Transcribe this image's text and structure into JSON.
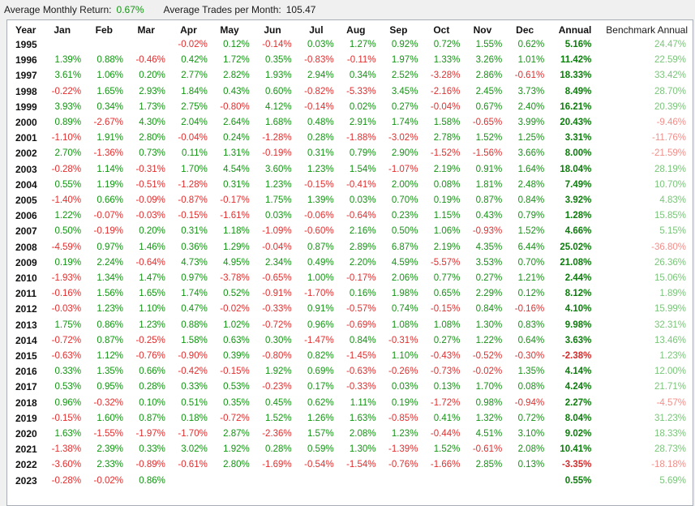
{
  "summary": {
    "avg_monthly_return_label": "Average Monthly Return:",
    "avg_monthly_return_value": "0.67%",
    "avg_trades_label": "Average Trades per Month:",
    "avg_trades_value": "105.47"
  },
  "colors": {
    "positive": "#159415",
    "negative": "#e03030",
    "annual_positive": "#0b7d0b",
    "annual_negative": "#d62b2b",
    "benchmark_positive": "#7cc47c",
    "benchmark_negative": "#f0908c"
  },
  "chart_data": {
    "type": "table",
    "title": "Monthly returns by year with annual and benchmark annual returns"
  },
  "table": {
    "headers": [
      "Year",
      "Jan",
      "Feb",
      "Mar",
      "Apr",
      "May",
      "Jun",
      "Jul",
      "Aug",
      "Sep",
      "Oct",
      "Nov",
      "Dec",
      "Annual",
      "Benchmark Annual"
    ],
    "rows": [
      {
        "year": "1995",
        "months": [
          "",
          "",
          "",
          "-0.02%",
          "0.12%",
          "-0.14%",
          "0.03%",
          "1.27%",
          "0.92%",
          "0.72%",
          "1.55%",
          "0.62%"
        ],
        "annual": "5.16%",
        "benchmark": "24.47%"
      },
      {
        "year": "1996",
        "months": [
          "1.39%",
          "0.88%",
          "-0.46%",
          "0.42%",
          "1.72%",
          "0.35%",
          "-0.83%",
          "-0.11%",
          "1.97%",
          "1.33%",
          "3.26%",
          "1.01%"
        ],
        "annual": "11.42%",
        "benchmark": "22.59%"
      },
      {
        "year": "1997",
        "months": [
          "3.61%",
          "1.06%",
          "0.20%",
          "2.77%",
          "2.82%",
          "1.93%",
          "2.94%",
          "0.34%",
          "2.52%",
          "-3.28%",
          "2.86%",
          "-0.61%"
        ],
        "annual": "18.33%",
        "benchmark": "33.42%"
      },
      {
        "year": "1998",
        "months": [
          "-0.22%",
          "1.65%",
          "2.93%",
          "1.84%",
          "0.43%",
          "0.60%",
          "-0.82%",
          "-5.33%",
          "3.45%",
          "-2.16%",
          "2.45%",
          "3.73%"
        ],
        "annual": "8.49%",
        "benchmark": "28.70%"
      },
      {
        "year": "1999",
        "months": [
          "3.93%",
          "0.34%",
          "1.73%",
          "2.75%",
          "-0.80%",
          "4.12%",
          "-0.14%",
          "0.02%",
          "0.27%",
          "-0.04%",
          "0.67%",
          "2.40%"
        ],
        "annual": "16.21%",
        "benchmark": "20.39%"
      },
      {
        "year": "2000",
        "months": [
          "0.89%",
          "-2.67%",
          "4.30%",
          "2.04%",
          "2.64%",
          "1.68%",
          "0.48%",
          "2.91%",
          "1.74%",
          "1.58%",
          "-0.65%",
          "3.99%"
        ],
        "annual": "20.43%",
        "benchmark": "-9.46%"
      },
      {
        "year": "2001",
        "months": [
          "-1.10%",
          "1.91%",
          "2.80%",
          "-0.04%",
          "0.24%",
          "-1.28%",
          "0.28%",
          "-1.88%",
          "-3.02%",
          "2.78%",
          "1.52%",
          "1.25%"
        ],
        "annual": "3.31%",
        "benchmark": "-11.76%"
      },
      {
        "year": "2002",
        "months": [
          "2.70%",
          "-1.36%",
          "0.73%",
          "0.11%",
          "1.31%",
          "-0.19%",
          "0.31%",
          "0.79%",
          "2.90%",
          "-1.52%",
          "-1.56%",
          "3.66%"
        ],
        "annual": "8.00%",
        "benchmark": "-21.59%"
      },
      {
        "year": "2003",
        "months": [
          "-0.28%",
          "1.14%",
          "-0.31%",
          "1.70%",
          "4.54%",
          "3.60%",
          "1.23%",
          "1.54%",
          "-1.07%",
          "2.19%",
          "0.91%",
          "1.64%"
        ],
        "annual": "18.04%",
        "benchmark": "28.19%"
      },
      {
        "year": "2004",
        "months": [
          "0.55%",
          "1.19%",
          "-0.51%",
          "-1.28%",
          "0.31%",
          "1.23%",
          "-0.15%",
          "-0.41%",
          "2.00%",
          "0.08%",
          "1.81%",
          "2.48%"
        ],
        "annual": "7.49%",
        "benchmark": "10.70%"
      },
      {
        "year": "2005",
        "months": [
          "-1.40%",
          "0.66%",
          "-0.09%",
          "-0.87%",
          "-0.17%",
          "1.75%",
          "1.39%",
          "0.03%",
          "0.70%",
          "0.19%",
          "0.87%",
          "0.84%"
        ],
        "annual": "3.92%",
        "benchmark": "4.83%"
      },
      {
        "year": "2006",
        "months": [
          "1.22%",
          "-0.07%",
          "-0.03%",
          "-0.15%",
          "-1.61%",
          "0.03%",
          "-0.06%",
          "-0.64%",
          "0.23%",
          "1.15%",
          "0.43%",
          "0.79%"
        ],
        "annual": "1.28%",
        "benchmark": "15.85%"
      },
      {
        "year": "2007",
        "months": [
          "0.50%",
          "-0.19%",
          "0.20%",
          "0.31%",
          "1.18%",
          "-1.09%",
          "-0.60%",
          "2.16%",
          "0.50%",
          "1.06%",
          "-0.93%",
          "1.52%"
        ],
        "annual": "4.66%",
        "benchmark": "5.15%"
      },
      {
        "year": "2008",
        "months": [
          "-4.59%",
          "0.97%",
          "1.46%",
          "0.36%",
          "1.29%",
          "-0.04%",
          "0.87%",
          "2.89%",
          "6.87%",
          "2.19%",
          "4.35%",
          "6.44%"
        ],
        "annual": "25.02%",
        "benchmark": "-36.80%"
      },
      {
        "year": "2009",
        "months": [
          "0.19%",
          "2.24%",
          "-0.64%",
          "4.73%",
          "4.95%",
          "2.34%",
          "0.49%",
          "2.20%",
          "4.59%",
          "-5.57%",
          "3.53%",
          "0.70%"
        ],
        "annual": "21.08%",
        "benchmark": "26.36%"
      },
      {
        "year": "2010",
        "months": [
          "-1.93%",
          "1.34%",
          "1.47%",
          "0.97%",
          "-3.78%",
          "-0.65%",
          "1.00%",
          "-0.17%",
          "2.06%",
          "0.77%",
          "0.27%",
          "1.21%"
        ],
        "annual": "2.44%",
        "benchmark": "15.06%"
      },
      {
        "year": "2011",
        "months": [
          "-0.16%",
          "1.56%",
          "1.65%",
          "1.74%",
          "0.52%",
          "-0.91%",
          "-1.70%",
          "0.16%",
          "1.98%",
          "0.65%",
          "2.29%",
          "0.12%"
        ],
        "annual": "8.12%",
        "benchmark": "1.89%"
      },
      {
        "year": "2012",
        "months": [
          "-0.03%",
          "1.23%",
          "1.10%",
          "0.47%",
          "-0.02%",
          "-0.33%",
          "0.91%",
          "-0.57%",
          "0.74%",
          "-0.15%",
          "0.84%",
          "-0.16%"
        ],
        "annual": "4.10%",
        "benchmark": "15.99%"
      },
      {
        "year": "2013",
        "months": [
          "1.75%",
          "0.86%",
          "1.23%",
          "0.88%",
          "1.02%",
          "-0.72%",
          "0.96%",
          "-0.69%",
          "1.08%",
          "1.08%",
          "1.30%",
          "0.83%"
        ],
        "annual": "9.98%",
        "benchmark": "32.31%"
      },
      {
        "year": "2014",
        "months": [
          "-0.72%",
          "0.87%",
          "-0.25%",
          "1.58%",
          "0.63%",
          "0.30%",
          "-1.47%",
          "0.84%",
          "-0.31%",
          "0.27%",
          "1.22%",
          "0.64%"
        ],
        "annual": "3.63%",
        "benchmark": "13.46%"
      },
      {
        "year": "2015",
        "months": [
          "-0.63%",
          "1.12%",
          "-0.76%",
          "-0.90%",
          "0.39%",
          "-0.80%",
          "0.82%",
          "-1.45%",
          "1.10%",
          "-0.43%",
          "-0.52%",
          "-0.30%"
        ],
        "annual": "-2.38%",
        "benchmark": "1.23%"
      },
      {
        "year": "2016",
        "months": [
          "0.33%",
          "1.35%",
          "0.66%",
          "-0.42%",
          "-0.15%",
          "1.92%",
          "0.69%",
          "-0.63%",
          "-0.26%",
          "-0.73%",
          "-0.02%",
          "1.35%"
        ],
        "annual": "4.14%",
        "benchmark": "12.00%"
      },
      {
        "year": "2017",
        "months": [
          "0.53%",
          "0.95%",
          "0.28%",
          "0.33%",
          "0.53%",
          "-0.23%",
          "0.17%",
          "-0.33%",
          "0.03%",
          "0.13%",
          "1.70%",
          "0.08%"
        ],
        "annual": "4.24%",
        "benchmark": "21.71%"
      },
      {
        "year": "2018",
        "months": [
          "0.96%",
          "-0.32%",
          "0.10%",
          "0.51%",
          "0.35%",
          "0.45%",
          "0.62%",
          "1.11%",
          "0.19%",
          "-1.72%",
          "0.98%",
          "-0.94%"
        ],
        "annual": "2.27%",
        "benchmark": "-4.57%"
      },
      {
        "year": "2019",
        "months": [
          "-0.15%",
          "1.60%",
          "0.87%",
          "0.18%",
          "-0.72%",
          "1.52%",
          "1.26%",
          "1.63%",
          "-0.85%",
          "0.41%",
          "1.32%",
          "0.72%"
        ],
        "annual": "8.04%",
        "benchmark": "31.23%"
      },
      {
        "year": "2020",
        "months": [
          "1.63%",
          "-1.55%",
          "-1.97%",
          "-1.70%",
          "2.87%",
          "-2.36%",
          "1.57%",
          "2.08%",
          "1.23%",
          "-0.44%",
          "4.51%",
          "3.10%"
        ],
        "annual": "9.02%",
        "benchmark": "18.33%"
      },
      {
        "year": "2021",
        "months": [
          "-1.38%",
          "2.39%",
          "0.33%",
          "3.02%",
          "1.92%",
          "0.28%",
          "0.59%",
          "1.30%",
          "-1.39%",
          "1.52%",
          "-0.61%",
          "2.08%"
        ],
        "annual": "10.41%",
        "benchmark": "28.73%"
      },
      {
        "year": "2022",
        "months": [
          "-3.60%",
          "2.33%",
          "-0.89%",
          "-0.61%",
          "2.80%",
          "-1.69%",
          "-0.54%",
          "-1.54%",
          "-0.76%",
          "-1.66%",
          "2.85%",
          "0.13%"
        ],
        "annual": "-3.35%",
        "benchmark": "-18.18%"
      },
      {
        "year": "2023",
        "months": [
          "-0.28%",
          "-0.02%",
          "0.86%",
          "",
          "",
          "",
          "",
          "",
          "",
          "",
          "",
          ""
        ],
        "annual": "0.55%",
        "benchmark": "5.69%"
      }
    ]
  }
}
